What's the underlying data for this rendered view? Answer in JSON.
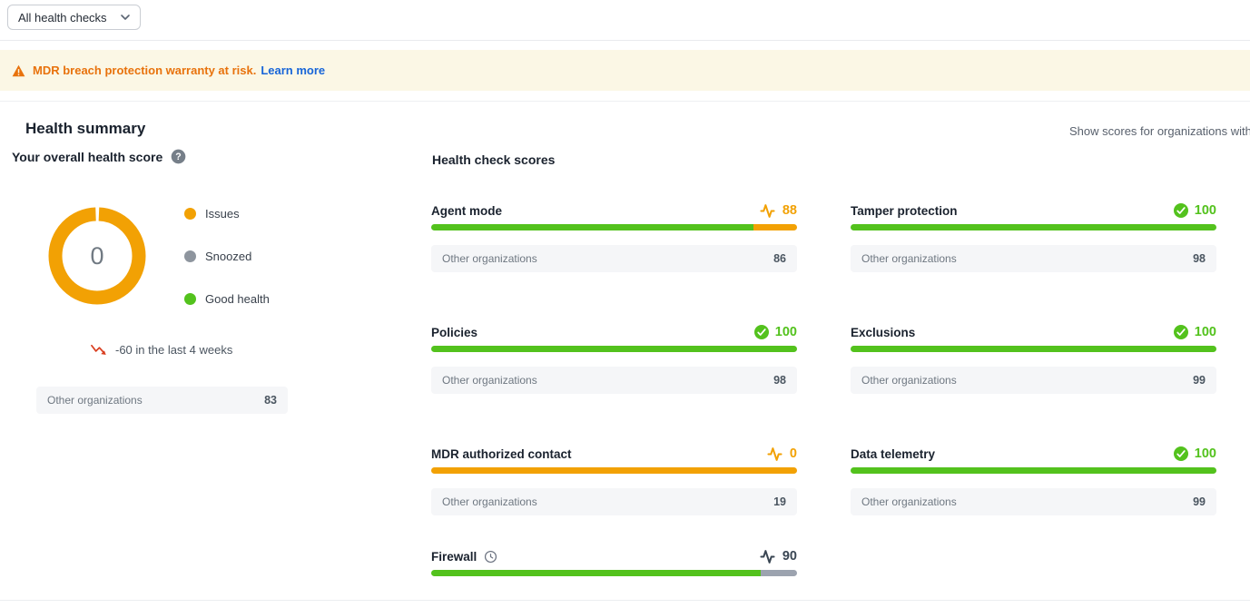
{
  "filter": {
    "label": "All health checks"
  },
  "banner": {
    "message": "MDR breach protection warranty at risk.",
    "link_label": "Learn more"
  },
  "header": {
    "title": "Health summary",
    "right_note": "Show scores for organizations with"
  },
  "overall": {
    "title": "Your overall health score",
    "score": "0",
    "legend": [
      {
        "label": "Issues",
        "color": "#f2a104"
      },
      {
        "label": "Snoozed",
        "color": "#8e959e"
      },
      {
        "label": "Good health",
        "color": "#53c21d"
      }
    ],
    "trend_text": "-60 in the last 4 weeks",
    "benchmark_label": "Other organizations",
    "benchmark_value": "83"
  },
  "checks": {
    "title": "Health check scores",
    "benchmark_label": "Other organizations",
    "cards": [
      {
        "name": "Agent mode",
        "score": 88,
        "status": "warning",
        "benchmark": "86",
        "has_clock": false
      },
      {
        "name": "Tamper protection",
        "score": 100,
        "status": "good",
        "benchmark": "98",
        "has_clock": false
      },
      {
        "name": "Policies",
        "score": 100,
        "status": "good",
        "benchmark": "98",
        "has_clock": false
      },
      {
        "name": "Exclusions",
        "score": 100,
        "status": "good",
        "benchmark": "99",
        "has_clock": false
      },
      {
        "name": "MDR authorized contact",
        "score": 0,
        "status": "warning",
        "benchmark": "19",
        "has_clock": false
      },
      {
        "name": "Data telemetry",
        "score": 100,
        "status": "good",
        "benchmark": "99",
        "has_clock": false
      },
      {
        "name": "Firewall",
        "score": 90,
        "status": "pending",
        "benchmark": null,
        "has_clock": true
      }
    ]
  },
  "colors": {
    "orange": "#f2a104",
    "green": "#53c21d",
    "gray_rest": "#9ca3af",
    "dark": "#3a4653",
    "donut": "#f2a104",
    "trend_red": "#d93f21"
  }
}
